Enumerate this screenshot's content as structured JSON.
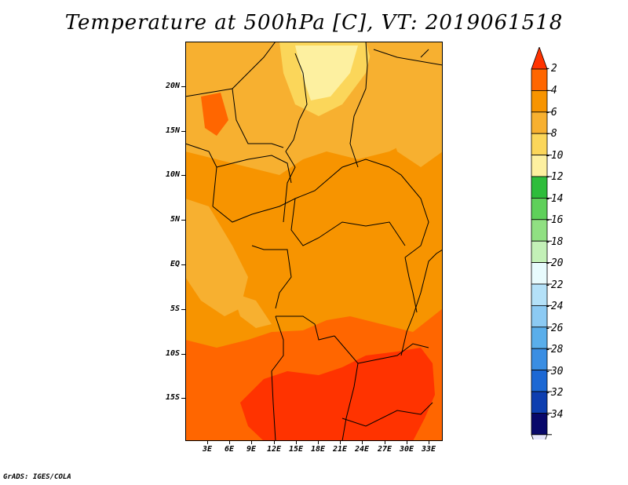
{
  "title": "Temperature at 500hPa [C], VT: 2019061518",
  "footer": "GrADS: IGES/COLA",
  "axes": {
    "lat_labels": [
      "20N",
      "15N",
      "10N",
      "5N",
      "EQ",
      "5S",
      "10S",
      "15S"
    ],
    "lon_labels": [
      "3E",
      "6E",
      "9E",
      "12E",
      "15E",
      "18E",
      "21E",
      "24E",
      "27E",
      "30E",
      "33E"
    ]
  },
  "colorbar": {
    "levels": [
      "-2",
      "-4",
      "-6",
      "-8",
      "-10",
      "-12",
      "-14",
      "-16",
      "-18",
      "-20",
      "-22",
      "-24",
      "-26",
      "-28",
      "-30",
      "-32",
      "-34"
    ],
    "colors": [
      "#ff3300",
      "#ff6600",
      "#f79400",
      "#f7b030",
      "#fbd65a",
      "#fdf0a0",
      "#2ebd3b",
      "#5fd05a",
      "#90e082",
      "#c3f0b7",
      "#e8fbfd",
      "#b4e1f8",
      "#8ccaf3",
      "#5aaeea",
      "#3a8ee3",
      "#1c68d4",
      "#0e3fb0",
      "#08086a",
      "#e6e6fb"
    ]
  },
  "map_colors": {
    "band_warm": "#ff3300",
    "band_orange": "#ff6600",
    "band_base": "#f79400",
    "band_light": "#f7b030",
    "band_pale": "#fbd65a",
    "band_palest": "#fdf0a0"
  }
}
